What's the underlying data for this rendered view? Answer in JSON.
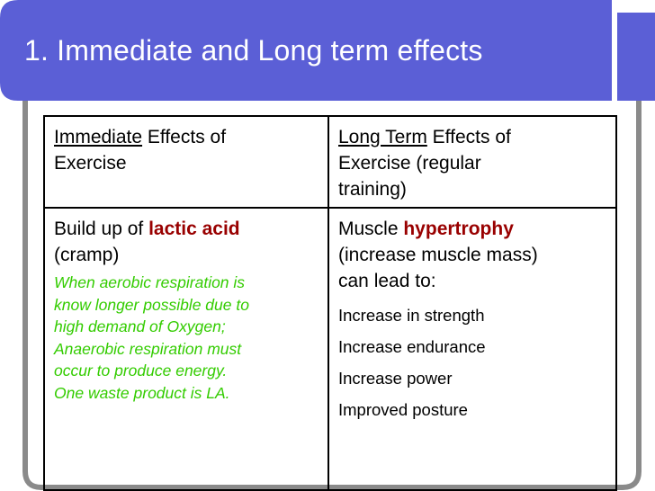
{
  "slide": {
    "title": "1. Immediate and Long term effects"
  },
  "theme": {
    "title_bar_color": "#5B5FD6",
    "frame_color": "#8A8A8A",
    "accent_color": "#990000",
    "note_color": "#33CC00"
  },
  "table": {
    "left_header": {
      "emphasis": "Immediate",
      "text_line1": " Effects of",
      "text_line2": "Exercise"
    },
    "right_header": {
      "emphasis": "Long Term",
      "text_line1": " Effects of",
      "text_line2": "Exercise (regular",
      "text_line3": "training)"
    },
    "left_cell": {
      "prefix": "Build up of ",
      "keyword": "lactic acid",
      "line2": "(cramp)",
      "note_lines": [
        "When aerobic respiration is",
        "know longer possible due to",
        "high demand of Oxygen;",
        "Anaerobic respiration must",
        "occur to produce energy.",
        "One waste product is LA."
      ]
    },
    "right_cell": {
      "prefix": "Muscle ",
      "keyword": "hypertrophy",
      "line2": "(increase muscle mass)",
      "line3": "can lead to:",
      "items": [
        "Increase in strength",
        "Increase endurance",
        "Increase power",
        "Improved posture"
      ]
    }
  }
}
